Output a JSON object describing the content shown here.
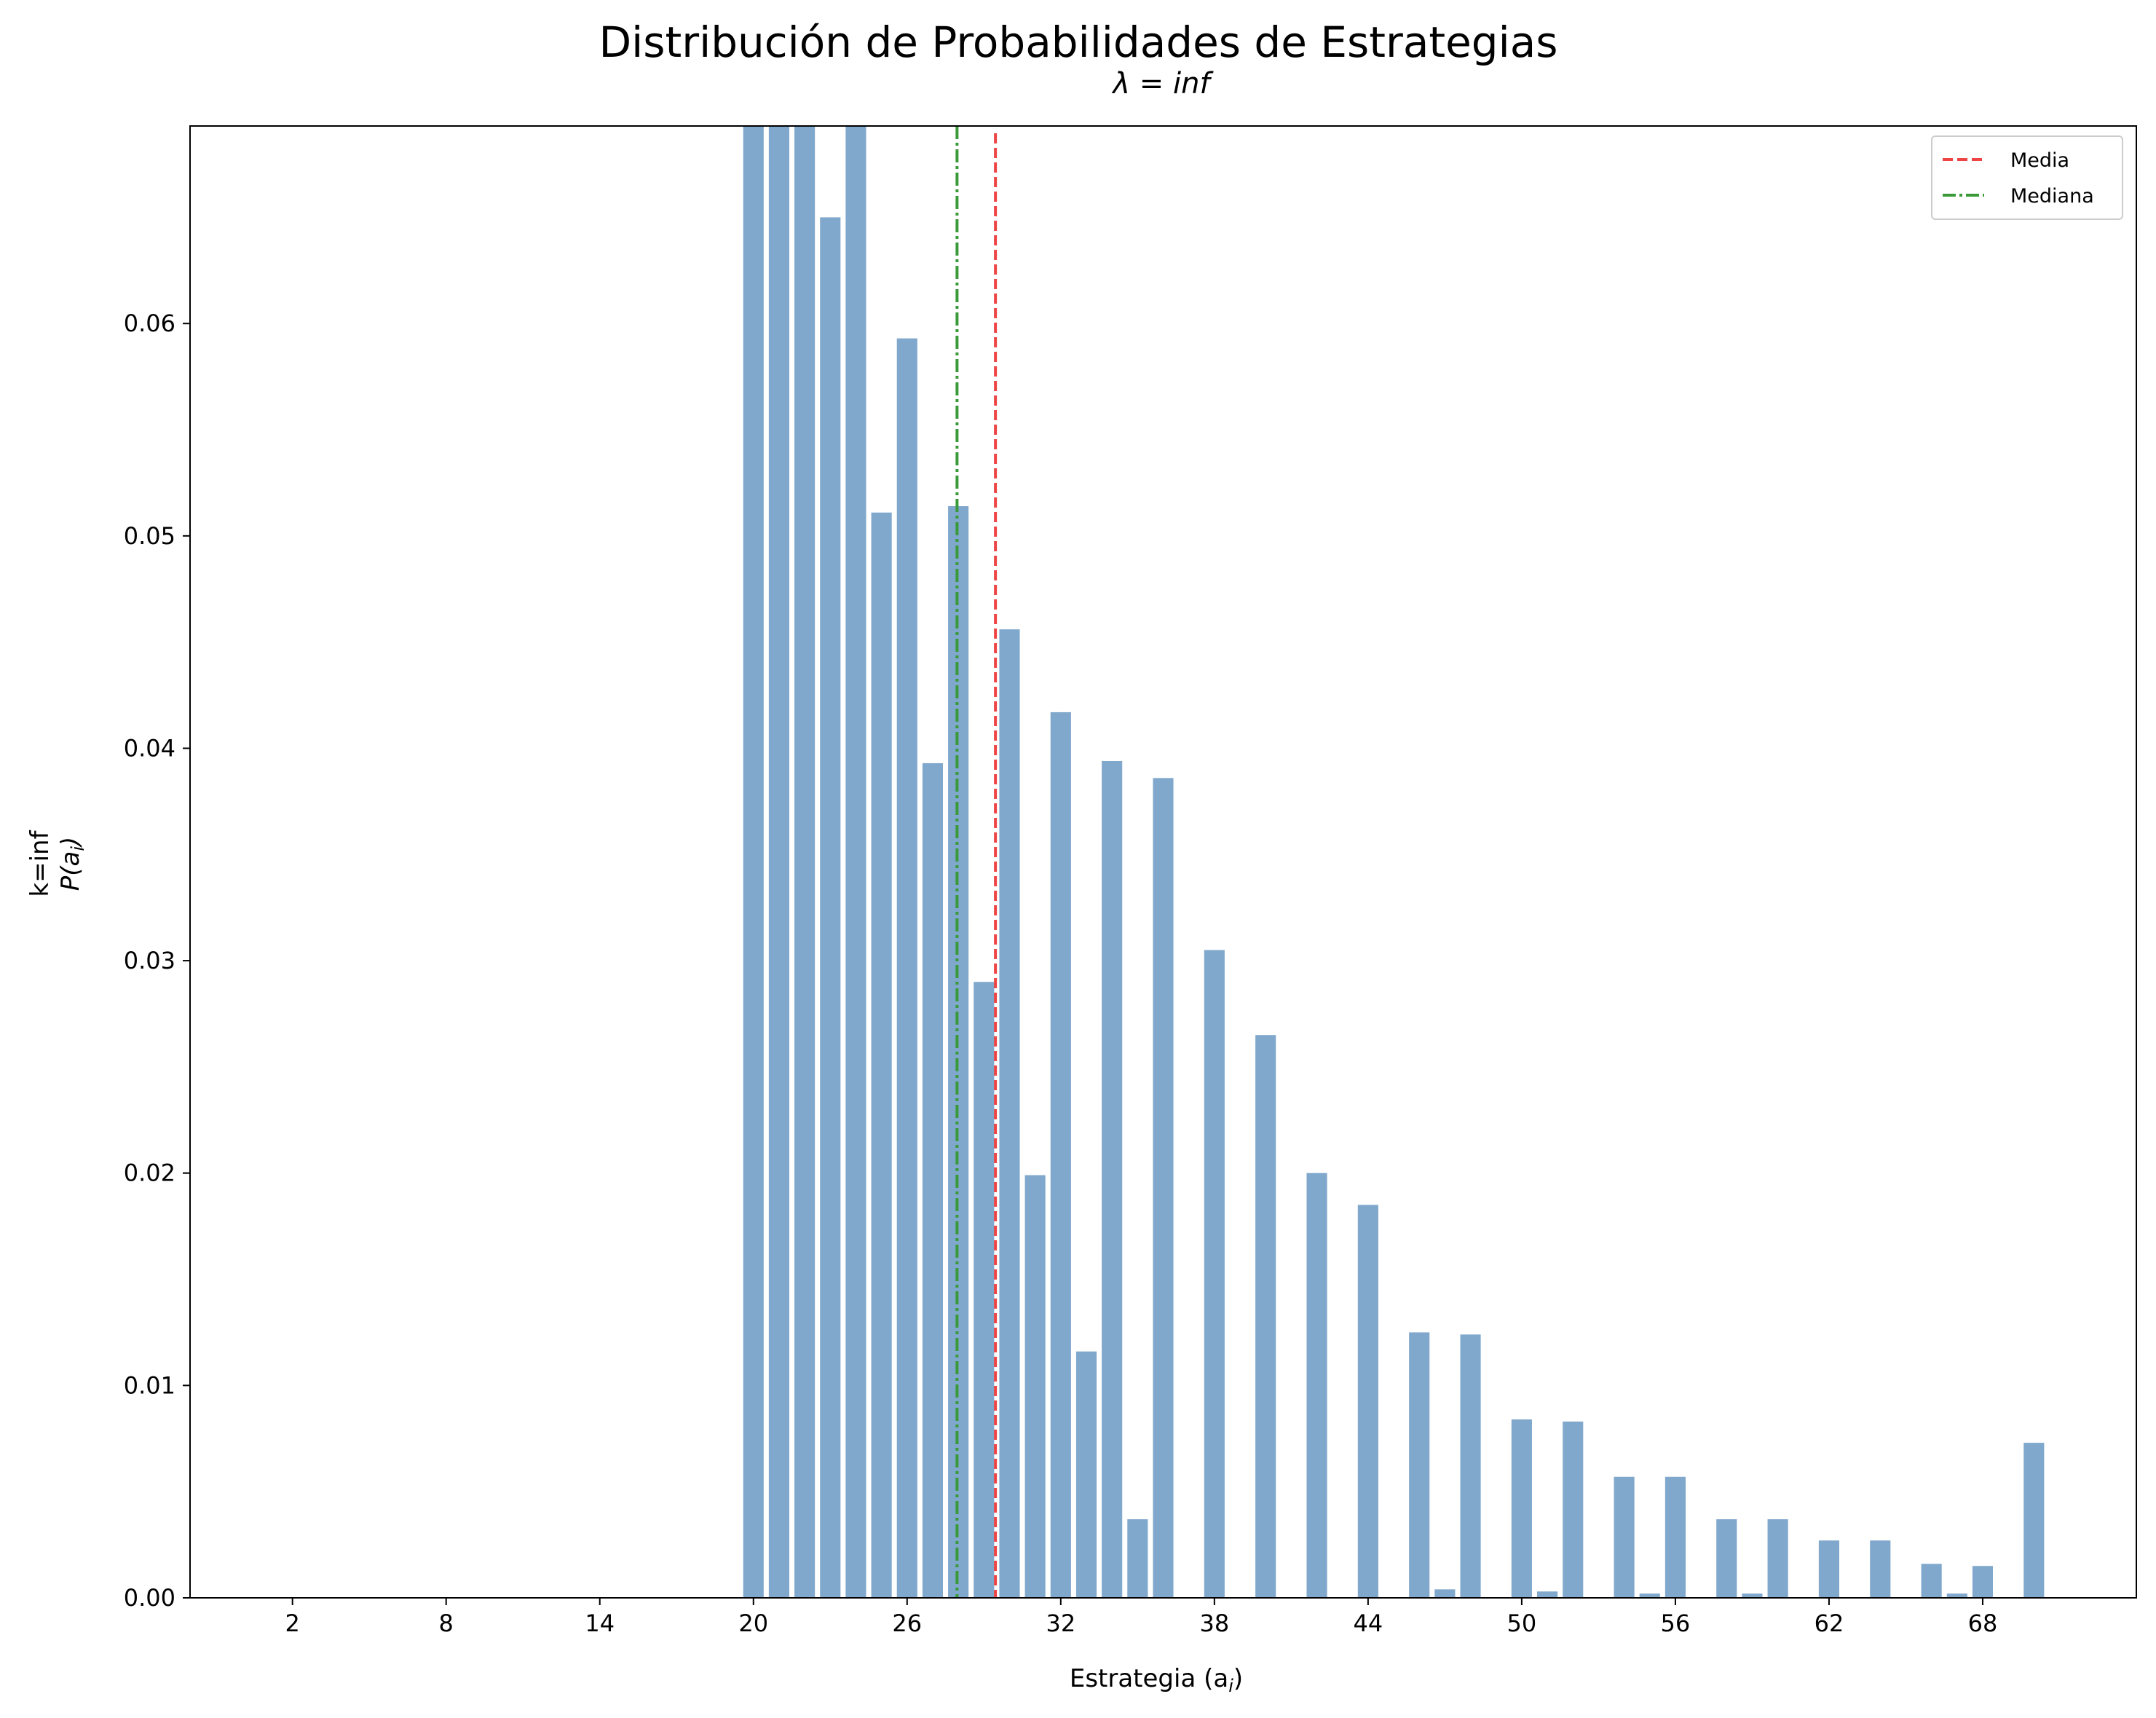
{
  "chart_data": {
    "type": "bar",
    "title": "Distribución de Probabilidades de Estrategias",
    "subtitle": "λ = inf",
    "xlabel": "Estrategia (a",
    "xlabel_sub": "i",
    "xlabel_close": ")",
    "ylabel_outer": "k=inf",
    "ylabel_inner": "P(a",
    "ylabel_inner_sub": "i",
    "ylabel_inner_close": ")",
    "xlim": [
      -2,
      74
    ],
    "ylim": [
      0,
      0.0693
    ],
    "xticks": [
      2,
      8,
      14,
      20,
      26,
      32,
      38,
      44,
      50,
      56,
      62,
      68
    ],
    "yticks": [
      0.0,
      0.01,
      0.02,
      0.03,
      0.04,
      0.05,
      0.06
    ],
    "ytick_labels": [
      "0.00",
      "0.01",
      "0.02",
      "0.03",
      "0.04",
      "0.05",
      "0.06"
    ],
    "bar_color": "#80a8cc",
    "bars": [
      {
        "x": 20,
        "y": 0.0693
      },
      {
        "x": 21,
        "y": 0.0693
      },
      {
        "x": 22,
        "y": 0.0693
      },
      {
        "x": 23,
        "y": 0.065
      },
      {
        "x": 24,
        "y": 0.0693
      },
      {
        "x": 25,
        "y": 0.0511
      },
      {
        "x": 26,
        "y": 0.0593
      },
      {
        "x": 27,
        "y": 0.0393
      },
      {
        "x": 28,
        "y": 0.0514
      },
      {
        "x": 29,
        "y": 0.029
      },
      {
        "x": 30,
        "y": 0.0456
      },
      {
        "x": 31,
        "y": 0.0199
      },
      {
        "x": 32,
        "y": 0.0417
      },
      {
        "x": 33,
        "y": 0.0116
      },
      {
        "x": 34,
        "y": 0.0394
      },
      {
        "x": 35,
        "y": 0.0037
      },
      {
        "x": 36,
        "y": 0.0386
      },
      {
        "x": 38,
        "y": 0.0305
      },
      {
        "x": 40,
        "y": 0.0265
      },
      {
        "x": 42,
        "y": 0.02
      },
      {
        "x": 44,
        "y": 0.0185
      },
      {
        "x": 46,
        "y": 0.0125
      },
      {
        "x": 47,
        "y": 0.0004
      },
      {
        "x": 48,
        "y": 0.0124
      },
      {
        "x": 50,
        "y": 0.0084
      },
      {
        "x": 51,
        "y": 0.0003
      },
      {
        "x": 52,
        "y": 0.0083
      },
      {
        "x": 54,
        "y": 0.0057
      },
      {
        "x": 55,
        "y": 0.0002
      },
      {
        "x": 56,
        "y": 0.0057
      },
      {
        "x": 58,
        "y": 0.0037
      },
      {
        "x": 59,
        "y": 0.0002
      },
      {
        "x": 60,
        "y": 0.0037
      },
      {
        "x": 62,
        "y": 0.0027
      },
      {
        "x": 64,
        "y": 0.0027
      },
      {
        "x": 66,
        "y": 0.0016
      },
      {
        "x": 67,
        "y": 0.0002
      },
      {
        "x": 68,
        "y": 0.0015
      },
      {
        "x": 70,
        "y": 0.0073
      }
    ],
    "mean": 29.45,
    "median": 27.95,
    "legend": [
      {
        "label": "Media",
        "color": "#ee4444",
        "style": "dashed"
      },
      {
        "label": "Mediana",
        "color": "#3a9a3a",
        "style": "dashdot"
      }
    ],
    "legend_position": "top-right"
  }
}
